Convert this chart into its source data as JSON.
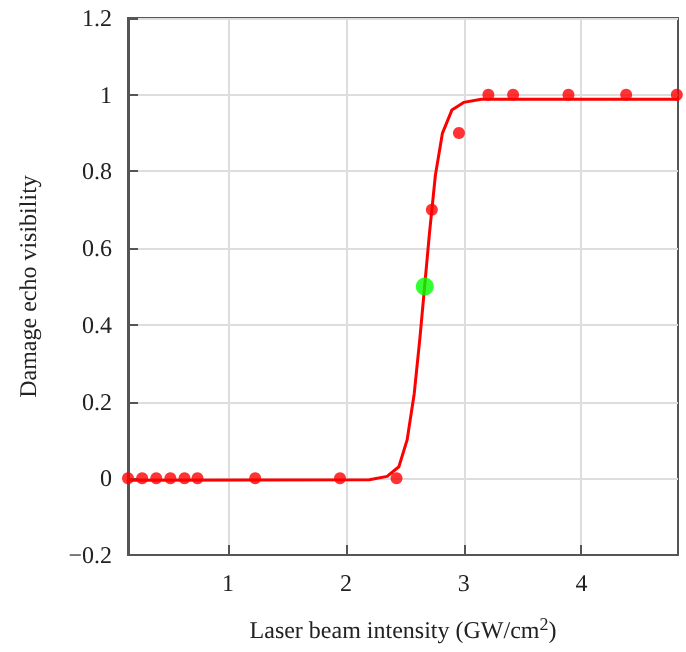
{
  "chart_data": {
    "type": "scatter",
    "xlabel": "Laser beam intensity (GW/cm$^{2}$)",
    "ylabel": "Damage echo visibility",
    "xlim": [
      0.15,
      4.82
    ],
    "xticks": [
      1,
      2,
      3,
      4
    ],
    "ylim": [
      -0.2,
      1.2
    ],
    "yticks": [
      {
        "value": -0.2,
        "label": "−0.2"
      },
      0,
      0.2,
      0.4,
      0.6,
      0.8,
      1,
      1.2
    ],
    "grid": true,
    "marker": "circle",
    "series": [
      {
        "color": "#ff0000",
        "x": [
          0.15,
          0.27,
          0.39,
          0.51,
          0.63,
          0.74,
          1.23,
          1.95,
          2.43,
          2.73,
          2.96,
          3.21,
          3.42,
          3.89,
          4.38,
          4.81
        ],
        "values": [
          0,
          0,
          0,
          0,
          0,
          0,
          0,
          0,
          0,
          0.7,
          0.9,
          1,
          1,
          1,
          1,
          1
        ]
      },
      {
        "color": "#00ff00",
        "x": [
          2.67
        ],
        "values": [
          0.5
        ]
      },
      {
        "type": "line",
        "color": "#ff0000",
        "marker": "none",
        "line_style": "solid",
        "x": [
          0.15,
          2.2,
          2.35,
          2.45,
          2.52,
          2.58,
          2.63,
          2.71,
          2.76,
          2.82,
          2.9,
          3.0,
          3.15,
          4.82
        ],
        "values": [
          -0.005,
          -0.004,
          0.005,
          0.03,
          0.1,
          0.22,
          0.37,
          0.64,
          0.79,
          0.9,
          0.96,
          0.98,
          0.988,
          0.988
        ]
      }
    ]
  }
}
